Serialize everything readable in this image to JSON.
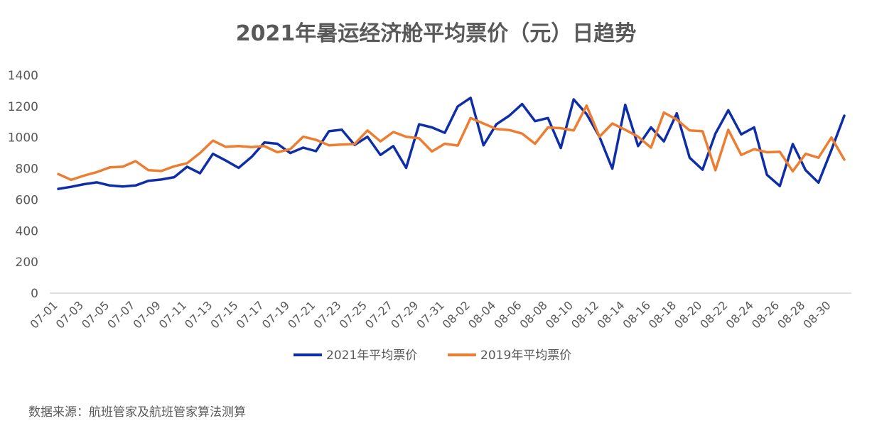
{
  "chart_data": {
    "type": "line",
    "title": "2021年暑运经济舱平均票价（元）日趋势",
    "xlabel": "",
    "ylabel": "",
    "ylim": [
      0,
      1400
    ],
    "yticks": [
      0,
      200,
      400,
      600,
      800,
      1000,
      1200,
      1400
    ],
    "grid": false,
    "legend_position": "bottom",
    "x": [
      "07-01",
      "07-02",
      "07-03",
      "07-04",
      "07-05",
      "07-06",
      "07-07",
      "07-08",
      "07-09",
      "07-10",
      "07-11",
      "07-12",
      "07-13",
      "07-14",
      "07-15",
      "07-16",
      "07-17",
      "07-18",
      "07-19",
      "07-20",
      "07-21",
      "07-22",
      "07-23",
      "07-24",
      "07-25",
      "07-26",
      "07-27",
      "07-28",
      "07-29",
      "07-30",
      "07-31",
      "08-01",
      "08-02",
      "08-03",
      "08-04",
      "08-05",
      "08-06",
      "08-07",
      "08-08",
      "08-09",
      "08-10",
      "08-11",
      "08-12",
      "08-13",
      "08-14",
      "08-15",
      "08-16",
      "08-17",
      "08-18",
      "08-19",
      "08-20",
      "08-21",
      "08-22",
      "08-23",
      "08-24",
      "08-25",
      "08-26",
      "08-27",
      "08-28",
      "08-29",
      "08-30",
      "08-31"
    ],
    "x_tick_labels": [
      "07-01",
      "07-03",
      "07-05",
      "07-07",
      "07-09",
      "07-11",
      "07-13",
      "07-15",
      "07-17",
      "07-19",
      "07-21",
      "07-23",
      "07-25",
      "07-27",
      "07-29",
      "07-31",
      "08-02",
      "08-04",
      "08-06",
      "08-08",
      "08-10",
      "08-12",
      "08-14",
      "08-16",
      "08-18",
      "08-20",
      "08-22",
      "08-24",
      "08-26",
      "08-28",
      "08-30"
    ],
    "series": [
      {
        "name": "2021年平均票价",
        "color": "#0E2DA8",
        "values": [
          670,
          683,
          700,
          712,
          692,
          685,
          692,
          722,
          730,
          745,
          812,
          770,
          895,
          852,
          805,
          875,
          968,
          960,
          900,
          935,
          912,
          1040,
          1050,
          952,
          1005,
          888,
          945,
          805,
          1085,
          1065,
          1030,
          1200,
          1255,
          950,
          1085,
          1140,
          1215,
          1105,
          1125,
          932,
          1245,
          1150,
          1005,
          800,
          1210,
          945,
          1065,
          975,
          1155,
          870,
          793,
          1025,
          1175,
          1020,
          1065,
          760,
          688,
          958,
          790,
          710,
          920,
          1140
        ]
      },
      {
        "name": "2019年平均票价",
        "color": "#ED7D31",
        "values": [
          765,
          728,
          755,
          778,
          808,
          812,
          848,
          790,
          785,
          815,
          835,
          900,
          980,
          940,
          945,
          938,
          945,
          905,
          925,
          1005,
          985,
          950,
          955,
          958,
          1045,
          975,
          1035,
          1005,
          995,
          910,
          960,
          948,
          1125,
          1090,
          1055,
          1048,
          1025,
          960,
          1065,
          1060,
          1045,
          1205,
          1005,
          1090,
          1050,
          1005,
          935,
          1160,
          1115,
          1045,
          1040,
          790,
          1050,
          888,
          925,
          905,
          908,
          783,
          895,
          870,
          1000,
          858
        ]
      }
    ]
  },
  "source_note": "数据来源：航班管家及航班管家算法测算"
}
